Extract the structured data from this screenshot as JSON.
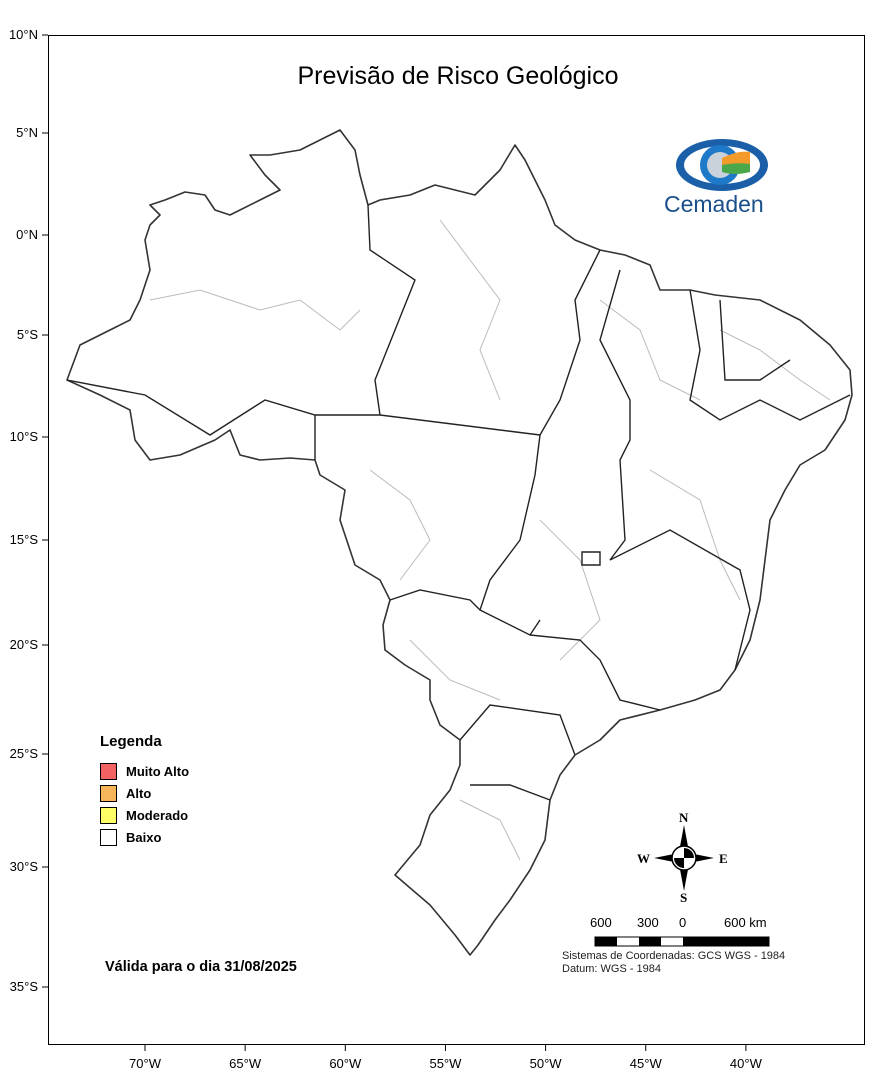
{
  "title": "Previsão de Risco Geológico",
  "logo": {
    "text": "Cemaden"
  },
  "lat_labels": [
    {
      "value": 10,
      "label": "10°N"
    },
    {
      "value": 5,
      "label": "5°N"
    },
    {
      "value": 0,
      "label": "0°N"
    },
    {
      "value": -5,
      "label": "5°S"
    },
    {
      "value": -10,
      "label": "10°S"
    },
    {
      "value": -15,
      "label": "15°S"
    },
    {
      "value": -20,
      "label": "20°S"
    },
    {
      "value": -25,
      "label": "25°S"
    },
    {
      "value": -30,
      "label": "30°S"
    },
    {
      "value": -35,
      "label": "35°S"
    }
  ],
  "lon_labels": [
    {
      "value": -70,
      "label": "70°W"
    },
    {
      "value": -65,
      "label": "65°W"
    },
    {
      "value": -60,
      "label": "60°W"
    },
    {
      "value": -55,
      "label": "55°W"
    },
    {
      "value": -50,
      "label": "50°W"
    },
    {
      "value": -45,
      "label": "45°W"
    },
    {
      "value": -40,
      "label": "40°W"
    }
  ],
  "legend": {
    "title": "Legenda",
    "items": [
      {
        "label": "Muito Alto",
        "color": "#f26262"
      },
      {
        "label": "Alto",
        "color": "#f7b55a"
      },
      {
        "label": "Moderado",
        "color": "#ffff66"
      },
      {
        "label": "Baixo",
        "color": "#ffffff"
      }
    ]
  },
  "validity": "Válida para o dia 31/08/2025",
  "compass": {
    "n": "N",
    "s": "S",
    "e": "E",
    "w": "W"
  },
  "scale": {
    "labels": [
      "600",
      "300",
      "0",
      "600 km"
    ]
  },
  "crs": {
    "system": "Sistemas de Coordenadas: GCS WGS - 1984",
    "datum": "Datum: WGS - 1984"
  }
}
